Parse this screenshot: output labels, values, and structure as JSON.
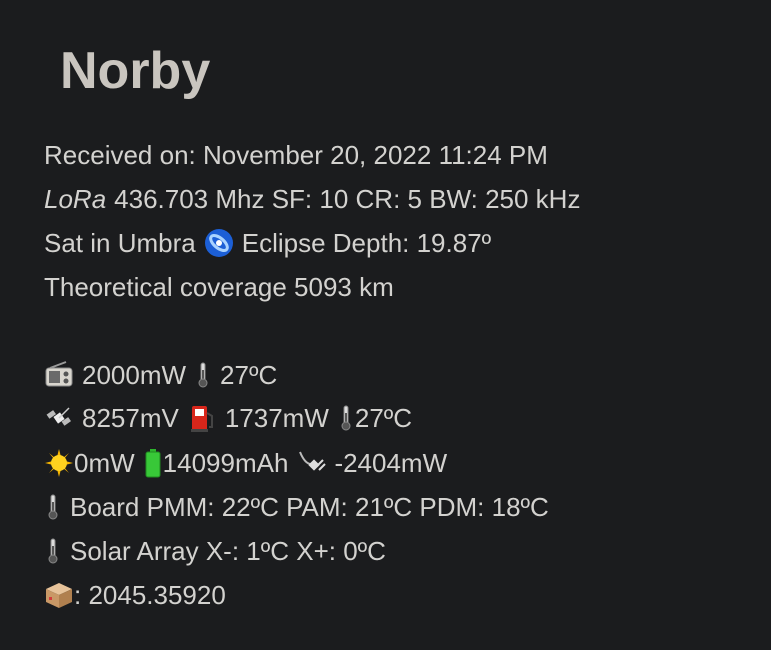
{
  "title": "Norby",
  "received": "Received on: November 20, 2022 11:24 PM",
  "lora_label": "LoRa",
  "lora_details": "436.703 Mhz SF: 10 CR: 5 BW: 250 kHz",
  "umbra_text": "Sat in Umbra",
  "eclipse_text": "Eclipse Depth: 19.87º",
  "coverage": "Theoretical coverage 5093 km",
  "radio_power": "2000mW",
  "radio_temp": "27ºC",
  "sat_voltage": "8257mV",
  "fuel_power": "1737mW",
  "fuel_temp": "27ºC",
  "solar_power": "0mW",
  "battery": "14099mAh",
  "plug_power": "-2404mW",
  "board_temps": "Board PMM: 22ºC PAM: 21ºC PDM: 18ºC",
  "solar_array": "Solar Array X-: 1ºC X+: 0ºC",
  "package_value": ": 2045.35920",
  "icons": {
    "umbra": "galaxy-icon",
    "radio": "radio-icon",
    "thermometer": "thermometer-icon",
    "satellite": "satellite-icon",
    "fuel": "fuel-pump-icon",
    "sun": "sun-icon",
    "battery": "battery-icon",
    "plug": "plug-icon",
    "package": "package-icon"
  }
}
